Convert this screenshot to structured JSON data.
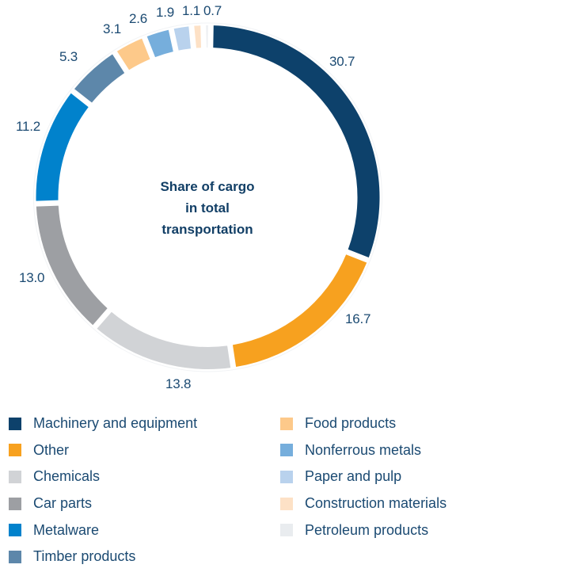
{
  "chart_data": {
    "type": "pie",
    "subtype": "donut",
    "title": "Share of cargo in total transportation",
    "title_lines": [
      "Share of cargo",
      "in total",
      "transportation"
    ],
    "unit": "%",
    "categories": [
      "Machinery and equipment",
      "Other",
      "Chemicals",
      "Car parts",
      "Metalware",
      "Timber products",
      "Food products",
      "Nonferrous metals",
      "Paper and pulp",
      "Construction materials",
      "Petroleum products"
    ],
    "values": [
      30.7,
      16.7,
      13.8,
      13.0,
      11.2,
      5.3,
      3.1,
      2.6,
      1.9,
      1.1,
      0.7
    ],
    "value_labels": [
      "30.7",
      "16.7",
      "13.8",
      "13.0",
      "11.2",
      "5.3",
      "3.1",
      "2.6",
      "1.9",
      "1.1",
      "0.7"
    ],
    "colors": [
      "#0d416b",
      "#f7a11f",
      "#d1d3d6",
      "#9d9fa3",
      "#0182cc",
      "#5d87aa",
      "#fdc98a",
      "#76aedc",
      "#b9d2ed",
      "#fde1c6",
      "#edeff2"
    ],
    "start_angle_deg": 1,
    "direction": "clockwise",
    "legend_position": "bottom"
  },
  "legend": {
    "left": [
      {
        "label": "Machinery and equipment",
        "color": "#0d416b"
      },
      {
        "label": "Other",
        "color": "#f7a11f"
      },
      {
        "label": "Chemicals",
        "color": "#d1d3d6"
      },
      {
        "label": "Car parts",
        "color": "#9d9fa3"
      },
      {
        "label": "Metalware",
        "color": "#0182cc"
      },
      {
        "label": "Timber products",
        "color": "#5d87aa"
      }
    ],
    "right": [
      {
        "label": "Food products",
        "color": "#fdc98a"
      },
      {
        "label": "Nonferrous metals",
        "color": "#76aedc"
      },
      {
        "label": "Paper and pulp",
        "color": "#b9d2ed"
      },
      {
        "label": "Construction materials",
        "color": "#fde1c6"
      },
      {
        "label": "Petroleum products",
        "color": "#e9ecef"
      }
    ]
  }
}
